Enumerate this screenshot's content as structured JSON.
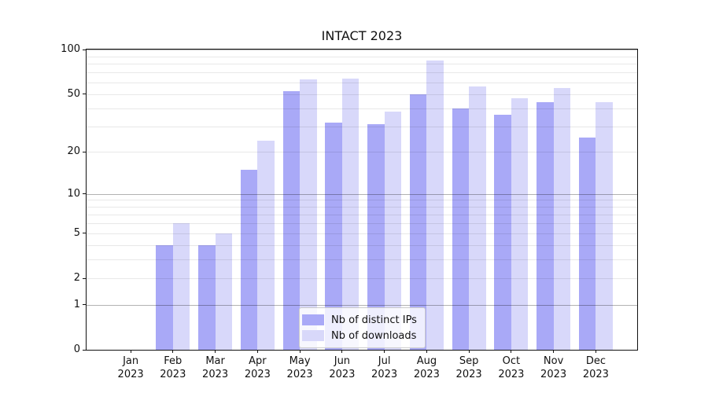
{
  "title": "INTACT 2023",
  "colors": {
    "dark_bar": "#a9a9f7",
    "light_bar": "#d8d8fa",
    "grid_major": "rgba(0,0,0,0.30)",
    "grid_minor": "rgba(0,0,0,0.09)",
    "axis": "#111111",
    "legend_border": "#cccccc"
  },
  "legend": {
    "items": [
      {
        "label": "Nb of distinct IPs",
        "color": "#a9a9f7"
      },
      {
        "label": "Nb of downloads",
        "color": "#d8d8fa"
      }
    ]
  },
  "chart_data": {
    "type": "bar",
    "title": "INTACT 2023",
    "categories": [
      "Jan 2023",
      "Feb 2023",
      "Mar 2023",
      "Apr 2023",
      "May 2023",
      "Jun 2023",
      "Jul 2023",
      "Aug 2023",
      "Sep 2023",
      "Oct 2023",
      "Nov 2023",
      "Dec 2023"
    ],
    "series": [
      {
        "name": "Nb of distinct IPs",
        "color": "#a9a9f7",
        "values": [
          0,
          4,
          4,
          15,
          52,
          32,
          31,
          50,
          40,
          36,
          44,
          25
        ]
      },
      {
        "name": "Nb of downloads",
        "color": "#d8d8fa",
        "values": [
          0,
          6,
          5,
          24,
          63,
          64,
          38,
          84,
          56,
          47,
          55,
          44
        ]
      }
    ],
    "xlabel": "",
    "ylabel": "",
    "ylim": [
      0,
      100
    ],
    "yscale": "log1p",
    "y_ticks": [
      0,
      1,
      2,
      5,
      10,
      20,
      50,
      100
    ],
    "y_major_gridlines": [
      1,
      10,
      100
    ],
    "y_minor_gridlines": [
      2,
      3,
      4,
      5,
      6,
      7,
      8,
      9,
      20,
      30,
      40,
      50,
      60,
      70,
      80,
      90
    ],
    "grid": "horizontal, drawn above bars",
    "legend_position": "lower center"
  }
}
